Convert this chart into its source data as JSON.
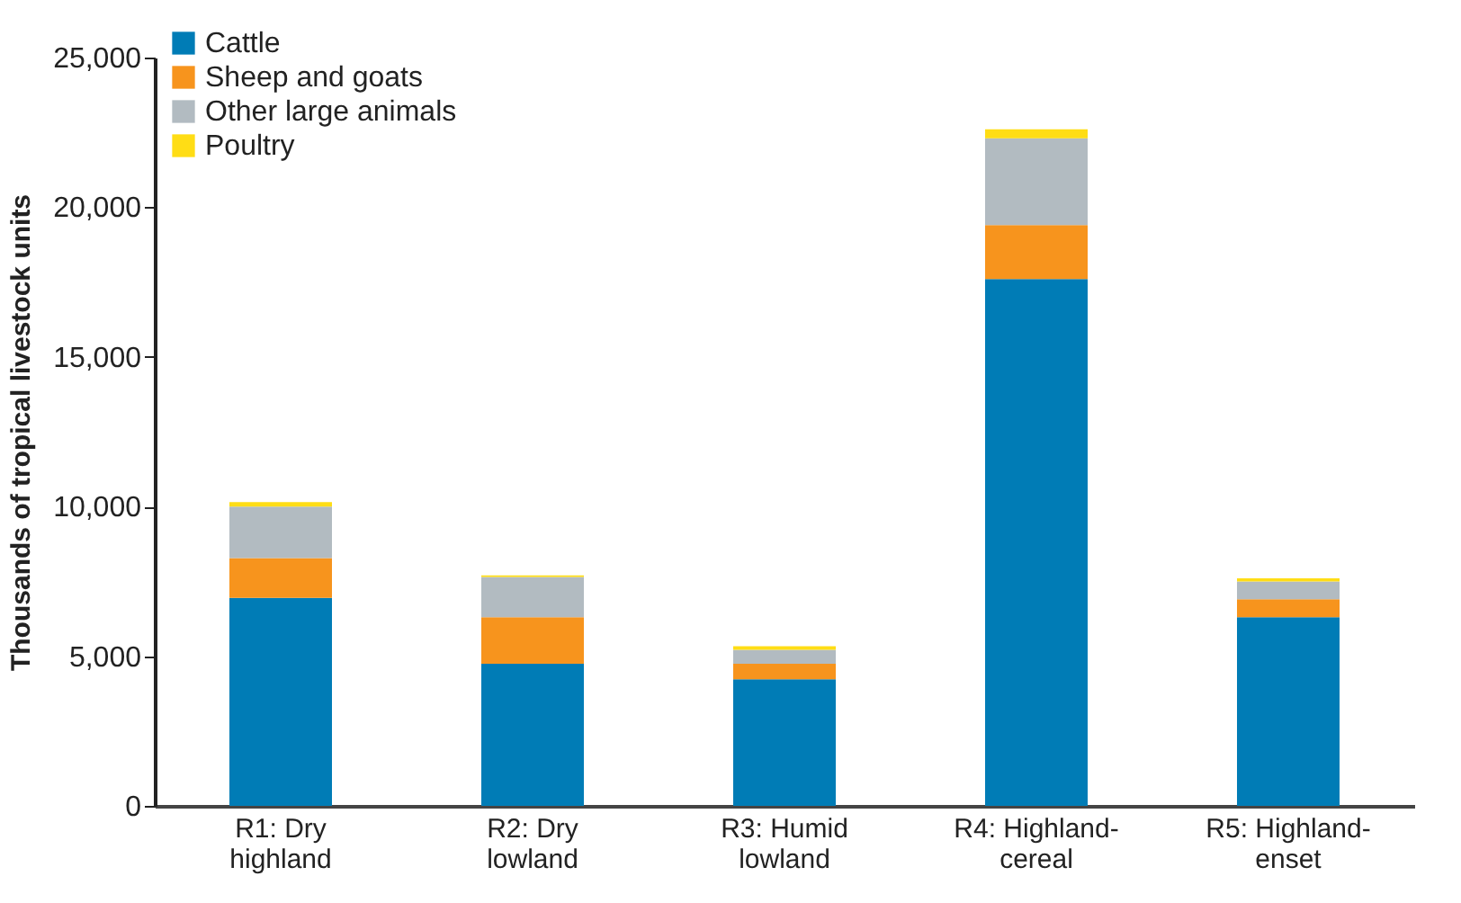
{
  "chart_data": {
    "type": "bar",
    "stacked": true,
    "ylabel": "Thousands of tropical livestock units",
    "categories": [
      "R1: Dry\nhighland",
      "R2: Dry\nlowland",
      "R3: Humid\nlowland",
      "R4: Highland-\ncereal",
      "R5: Highland-\nenset"
    ],
    "series": [
      {
        "name": "Cattle",
        "color": "#007cb6",
        "values": [
          6950,
          4750,
          4230,
          17600,
          6300
        ]
      },
      {
        "name": "Sheep and goats",
        "color": "#f7941d",
        "values": [
          1330,
          1550,
          520,
          1800,
          600
        ]
      },
      {
        "name": "Other large animals",
        "color": "#b2bbc1",
        "values": [
          1720,
          1350,
          460,
          2900,
          600
        ]
      },
      {
        "name": "Poultry",
        "color": "#ffdd15",
        "values": [
          150,
          50,
          120,
          300,
          100
        ]
      }
    ],
    "ylim": [
      0,
      25000
    ],
    "yticks": [
      0,
      {
        "value": 5000,
        "label": "5,000"
      },
      {
        "value": 10000,
        "label": "10,000"
      },
      {
        "value": 15000,
        "label": "15,000"
      },
      {
        "value": 20000,
        "label": "20,000"
      },
      {
        "value": 25000,
        "label": "25,000"
      }
    ],
    "grid": false,
    "legend": "top left"
  }
}
